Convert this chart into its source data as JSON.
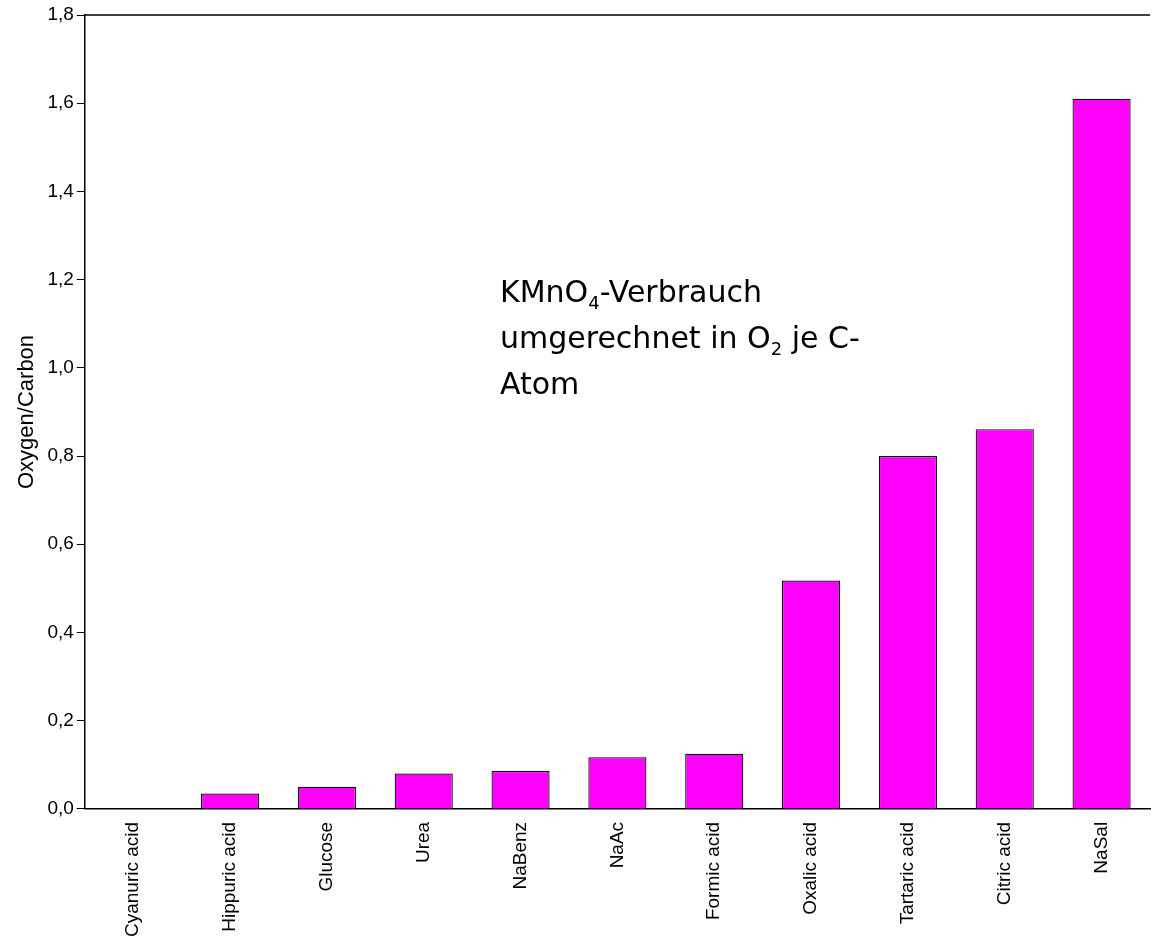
{
  "chart_data": {
    "type": "bar",
    "ylabel": "Oxygen/Carbon",
    "categories": [
      "Cyanuric acid",
      "Hippuric acid",
      "Glucose",
      "Urea",
      "NaBenz",
      "NaAc",
      "Formic acid",
      "Oxalic acid",
      "Tartaric acid",
      "Citric acid",
      "NaSal"
    ],
    "values": [
      0,
      0.035,
      0.05,
      0.08,
      0.086,
      0.117,
      0.125,
      0.518,
      0.8,
      0.861,
      1.61
    ],
    "color": "#ff00ff",
    "ylim": [
      0,
      1.8
    ],
    "yticks": [
      {
        "value": 0,
        "label": "0,0"
      },
      {
        "value": 0.2,
        "label": "0,2"
      },
      {
        "value": 0.4,
        "label": "0,4"
      },
      {
        "value": 0.6,
        "label": "0,6"
      },
      {
        "value": 0.8,
        "label": "0,8"
      },
      {
        "value": 1,
        "label": "1,0"
      },
      {
        "value": 1.2,
        "label": "1,2"
      },
      {
        "value": 1.4,
        "label": "1,4"
      },
      {
        "value": 1.6,
        "label": "1,6"
      },
      {
        "value": 1.8,
        "label": "1,8"
      }
    ],
    "grid": false,
    "legend": false,
    "annotations": [
      "KMnO$_{4}$-Verbrauch umgerechnet in O$_{2}$ je C-Atom"
    ]
  }
}
